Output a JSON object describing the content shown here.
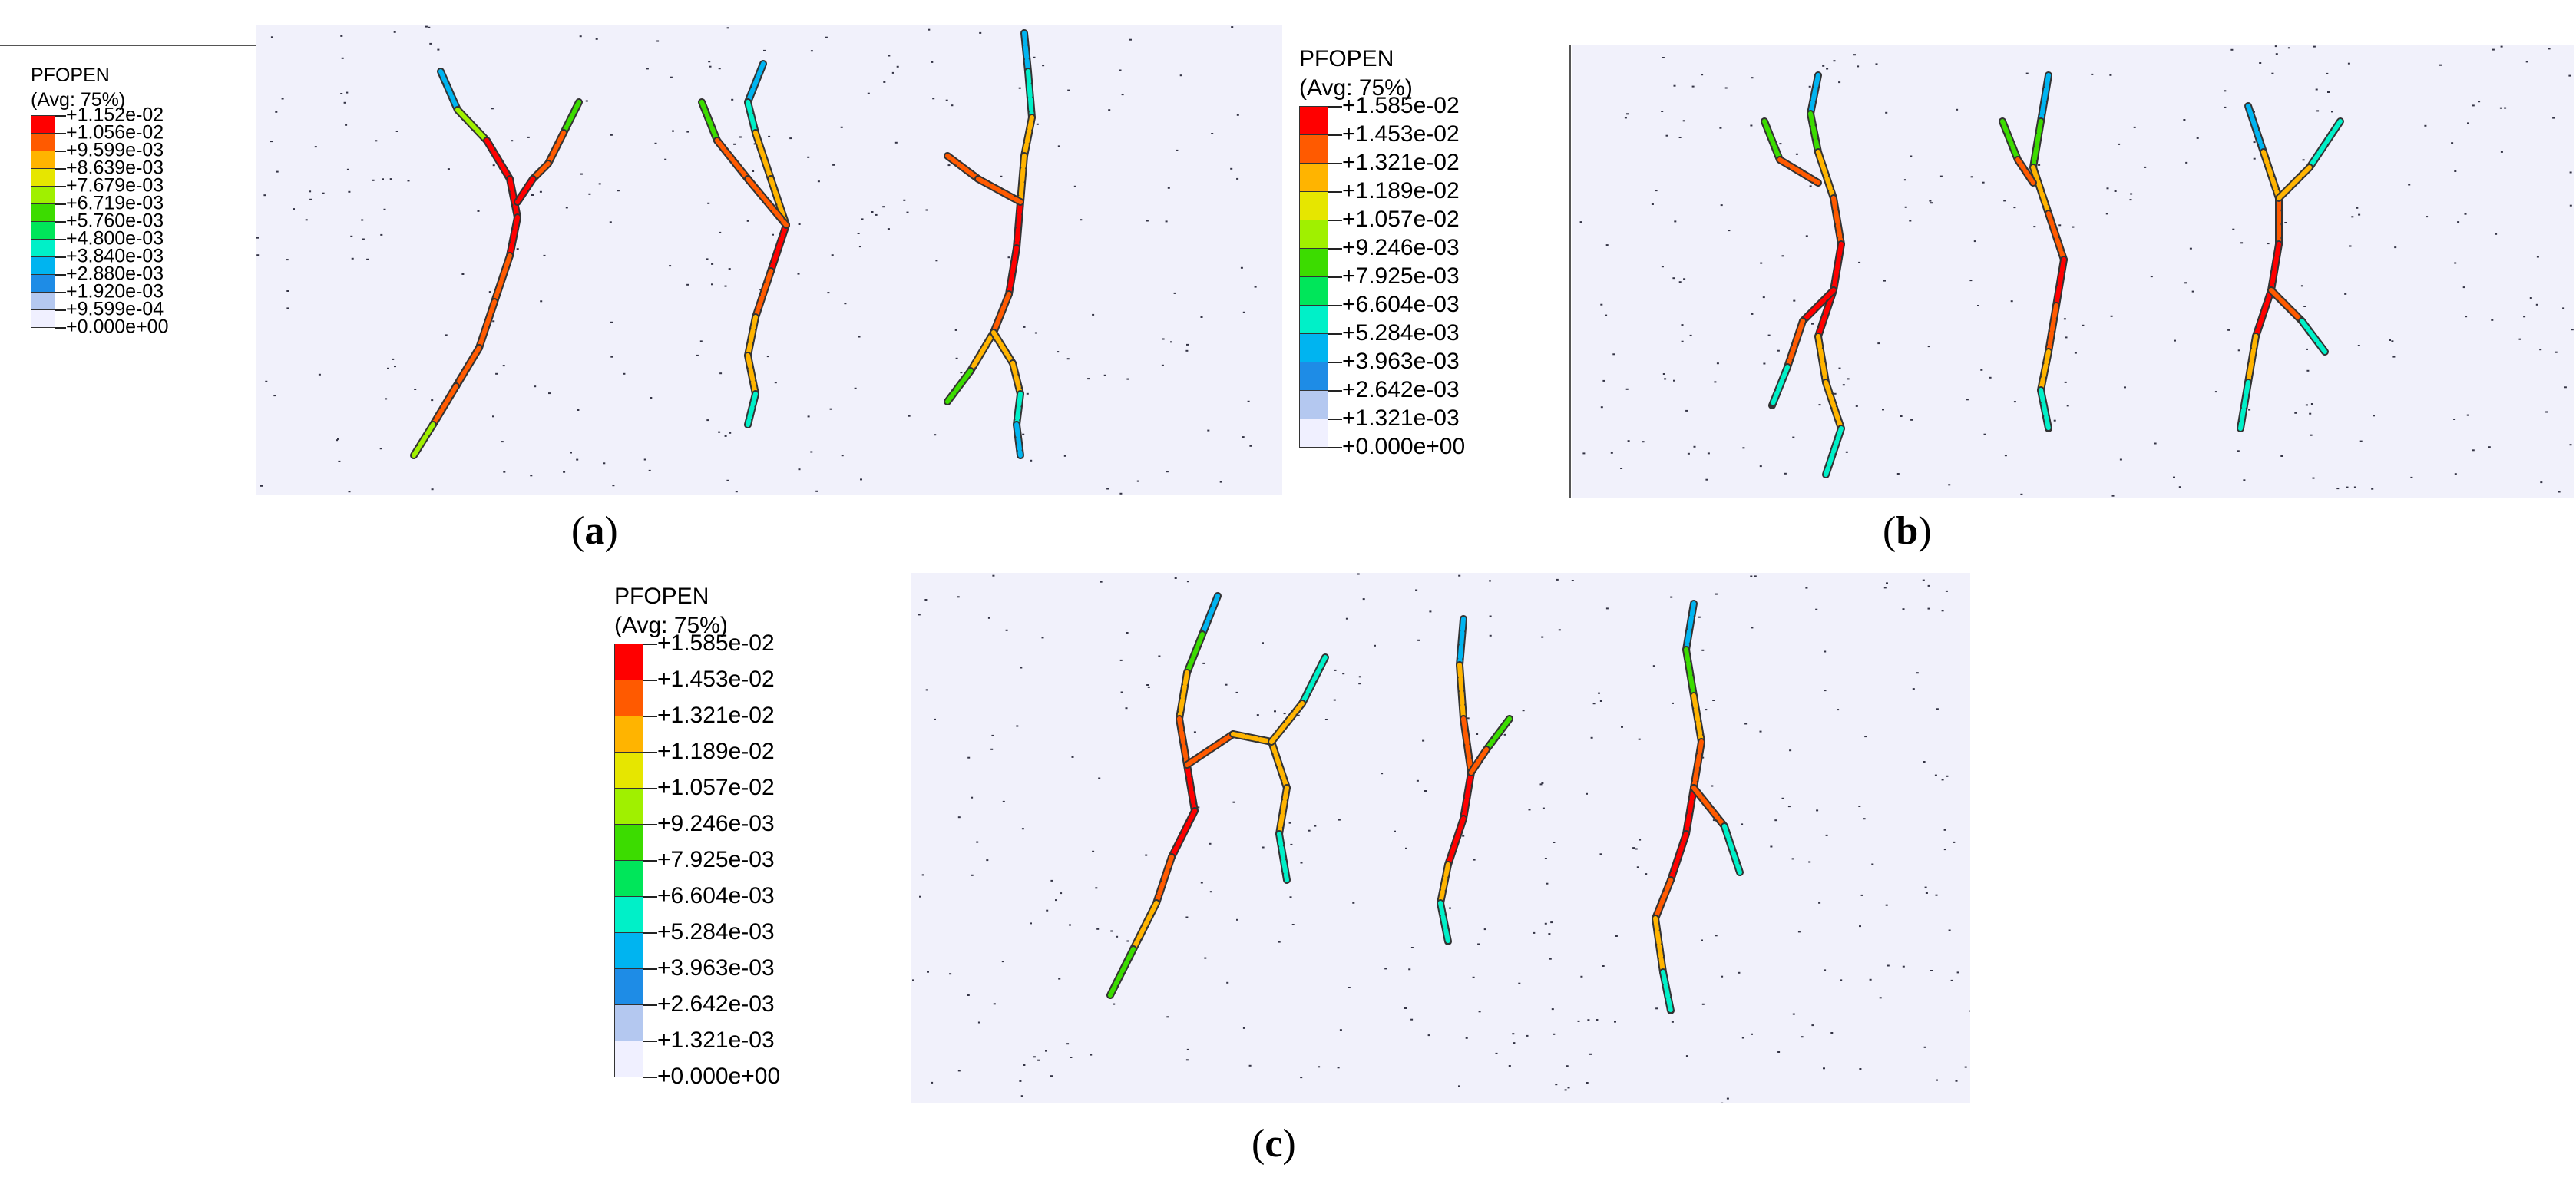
{
  "colors": {
    "legend_bands": [
      "#ff0000",
      "#ff5a00",
      "#ffb400",
      "#e6e600",
      "#a0f000",
      "#3cdc00",
      "#00e65a",
      "#00f0c8",
      "#00b4f0",
      "#1e8ce6",
      "#b4c8f0",
      "#f0f0ff"
    ],
    "panel_background": "#f1f1fb",
    "particle": "#333344"
  },
  "panels": [
    {
      "id": "a",
      "caption": {
        "open": "(",
        "letter": "a",
        "close": ")"
      },
      "legend": {
        "variable": "PFOPEN",
        "avg": "(Avg: 75%)",
        "labels": [
          "+1.152e-02",
          "+1.056e-02",
          "+9.599e-03",
          "+8.639e-03",
          "+7.679e-03",
          "+6.719e-03",
          "+5.760e-03",
          "+4.800e-03",
          "+3.840e-03",
          "+2.880e-03",
          "+1.920e-03",
          "+9.599e-04",
          "+0.000e+00"
        ]
      }
    },
    {
      "id": "b",
      "caption": {
        "open": "(",
        "letter": "b",
        "close": ")"
      },
      "legend": {
        "variable": "PFOPEN",
        "avg": "(Avg: 75%)",
        "labels": [
          "+1.585e-02",
          "+1.453e-02",
          "+1.321e-02",
          "+1.189e-02",
          "+1.057e-02",
          "+9.246e-03",
          "+7.925e-03",
          "+6.604e-03",
          "+5.284e-03",
          "+3.963e-03",
          "+2.642e-03",
          "+1.321e-03",
          "+0.000e+00"
        ]
      }
    },
    {
      "id": "c",
      "caption": {
        "open": "(",
        "letter": "c",
        "close": ")"
      },
      "legend": {
        "variable": "PFOPEN",
        "avg": "(Avg: 75%)",
        "labels": [
          "+1.585e-02",
          "+1.453e-02",
          "+1.321e-02",
          "+1.189e-02",
          "+1.057e-02",
          "+9.246e-03",
          "+7.925e-03",
          "+6.604e-03",
          "+5.284e-03",
          "+3.963e-03",
          "+2.642e-03",
          "+1.321e-03",
          "+0.000e+00"
        ]
      }
    }
  ]
}
